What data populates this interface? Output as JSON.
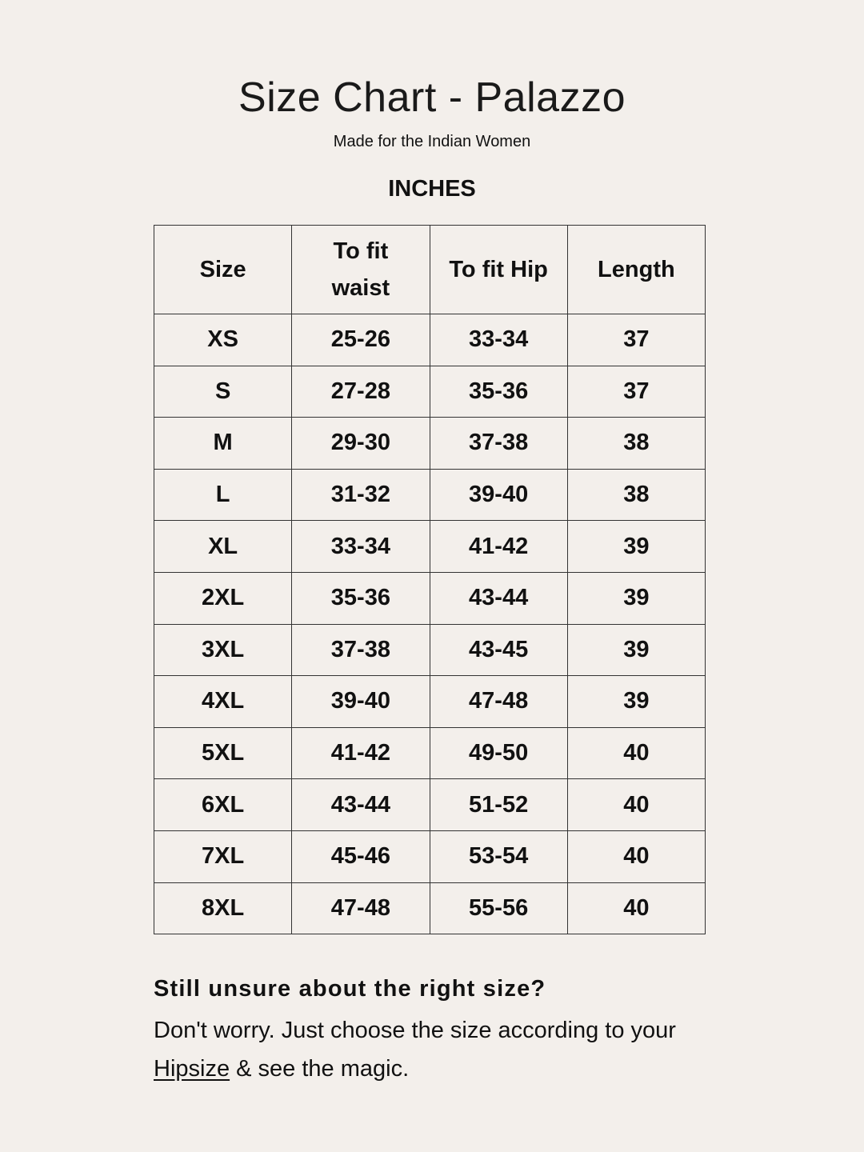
{
  "title": "Size Chart - Palazzo",
  "subtitle": "Made for the Indian Women",
  "unit": "INCHES",
  "table": {
    "headers": [
      "Size",
      "To fit waist",
      "To fit Hip",
      "Length"
    ],
    "rows": [
      [
        "XS",
        "25-26",
        "33-34",
        "37"
      ],
      [
        "S",
        "27-28",
        "35-36",
        "37"
      ],
      [
        "M",
        "29-30",
        "37-38",
        "38"
      ],
      [
        "L",
        "31-32",
        "39-40",
        "38"
      ],
      [
        "XL",
        "33-34",
        "41-42",
        "39"
      ],
      [
        "2XL",
        "35-36",
        "43-44",
        "39"
      ],
      [
        "3XL",
        "37-38",
        "43-45",
        "39"
      ],
      [
        "4XL",
        "39-40",
        "47-48",
        "39"
      ],
      [
        "5XL",
        "41-42",
        "49-50",
        "40"
      ],
      [
        "6XL",
        "43-44",
        "51-52",
        "40"
      ],
      [
        "7XL",
        "45-46",
        "53-54",
        "40"
      ],
      [
        "8XL",
        "47-48",
        "55-56",
        "40"
      ]
    ]
  },
  "note": {
    "heading": "Still unsure about the right size?",
    "line1": "Don't worry. Just choose the size according to your",
    "link": "Hipsize",
    "line2": " & see the magic."
  }
}
